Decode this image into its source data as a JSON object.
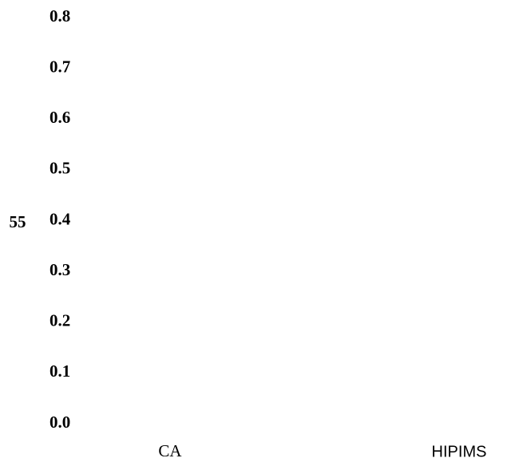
{
  "chart_data": {
    "type": "bar",
    "y_label": "55",
    "categories": [
      "CA",
      "HIPIMS"
    ],
    "ylim": [
      0,
      0.8
    ],
    "yticks": [
      {
        "value": 0,
        "label": "0.0"
      },
      0.1,
      0.2,
      0.3,
      0.4,
      0.5,
      0.6,
      0.7,
      0.8
    ]
  }
}
